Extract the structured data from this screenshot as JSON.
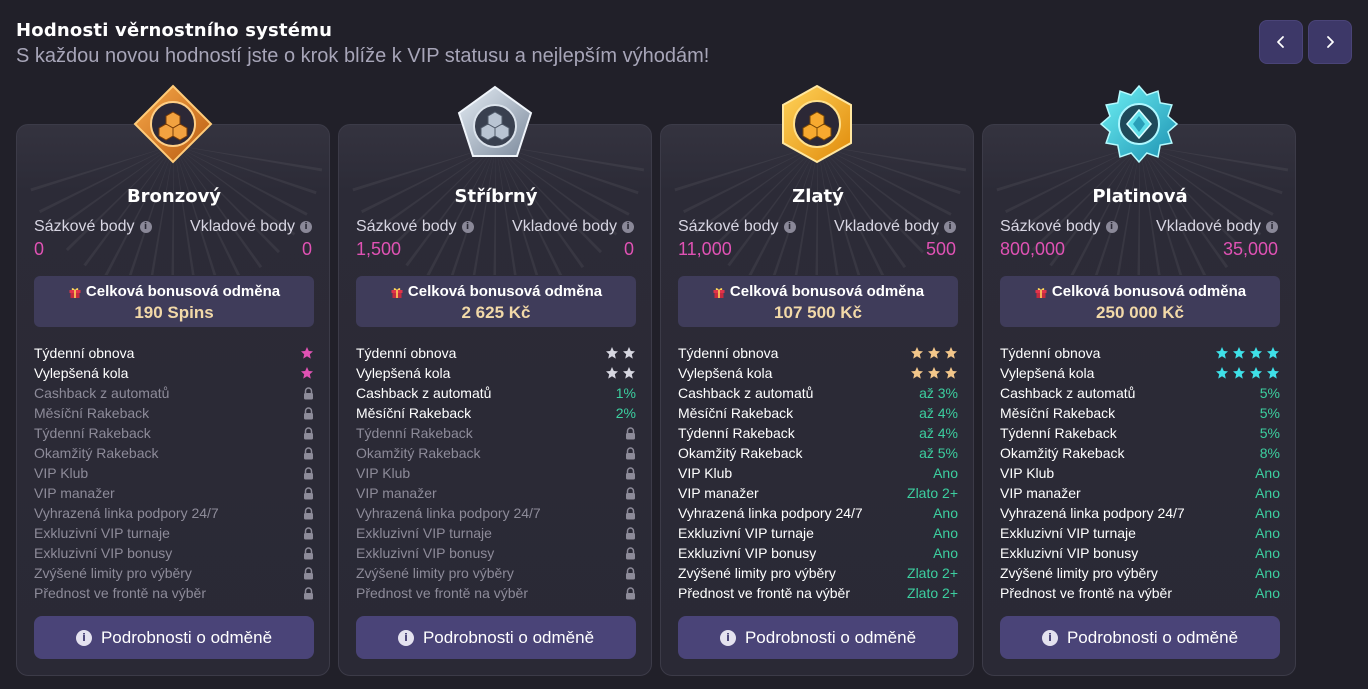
{
  "header": {
    "title": "Hodnosti věrnostního systému",
    "subtitle": "S každou novou hodností jste o krok blíže k VIP statusu a nejlepším výhodám!"
  },
  "nav": {
    "prev_icon": "chevron-left-icon",
    "next_icon": "chevron-right-icon"
  },
  "colors": {
    "accent_pink": "#e052b4",
    "value_green": "#3ccfa0",
    "bonus_gold": "#f2d9a8",
    "button_bg": "#4a4478"
  },
  "labels": {
    "wager_points": "Sázkové body",
    "deposit_points": "Vkladové body",
    "total_bonus": "Celková bonusová odměna",
    "details_button": "Podrobnosti o odměně"
  },
  "feature_names": [
    "Týdenní obnova",
    "Vylepšená kola",
    "Cashback z automatů",
    "Měsíční Rakeback",
    "Týdenní Rakeback",
    "Okamžitý Rakeback",
    "VIP Klub",
    "VIP manažer",
    "Vyhrazená linka podpory 24/7",
    "Exkluzivní VIP turnaje",
    "Exkluzivní VIP bonusy",
    "Zvýšené limity pro výběry",
    "Přednost ve frontě na výběr"
  ],
  "tiers": [
    {
      "name": "Bronzový",
      "badge": "bronze-badge-icon",
      "wager": "0",
      "deposit": "0",
      "bonus": "190 Spins",
      "star_color": "#e052b4",
      "features": [
        {
          "type": "stars",
          "count": 1
        },
        {
          "type": "stars",
          "count": 1
        },
        {
          "type": "locked"
        },
        {
          "type": "locked"
        },
        {
          "type": "locked"
        },
        {
          "type": "locked"
        },
        {
          "type": "locked"
        },
        {
          "type": "locked"
        },
        {
          "type": "locked"
        },
        {
          "type": "locked"
        },
        {
          "type": "locked"
        },
        {
          "type": "locked"
        },
        {
          "type": "locked"
        }
      ]
    },
    {
      "name": "Stříbrný",
      "badge": "silver-badge-icon",
      "wager": "1,500",
      "deposit": "0",
      "bonus": "2 625 Kč",
      "star_color": "#d6d6e0",
      "features": [
        {
          "type": "stars",
          "count": 2
        },
        {
          "type": "stars",
          "count": 2
        },
        {
          "type": "value",
          "value": "1%"
        },
        {
          "type": "value",
          "value": "2%"
        },
        {
          "type": "locked"
        },
        {
          "type": "locked"
        },
        {
          "type": "locked"
        },
        {
          "type": "locked"
        },
        {
          "type": "locked"
        },
        {
          "type": "locked"
        },
        {
          "type": "locked"
        },
        {
          "type": "locked"
        },
        {
          "type": "locked"
        }
      ]
    },
    {
      "name": "Zlatý",
      "badge": "gold-badge-icon",
      "wager": "11,000",
      "deposit": "500",
      "bonus": "107 500 Kč",
      "star_color": "#f2c68a",
      "features": [
        {
          "type": "stars",
          "count": 3
        },
        {
          "type": "stars",
          "count": 3
        },
        {
          "type": "value",
          "value": "až 3%"
        },
        {
          "type": "value",
          "value": "až 4%"
        },
        {
          "type": "value",
          "value": "až 4%"
        },
        {
          "type": "value",
          "value": "až 5%"
        },
        {
          "type": "value",
          "value": "Ano"
        },
        {
          "type": "value",
          "value": "Zlato 2+"
        },
        {
          "type": "value",
          "value": "Ano"
        },
        {
          "type": "value",
          "value": "Ano"
        },
        {
          "type": "value",
          "value": "Ano"
        },
        {
          "type": "value",
          "value": "Zlato 2+"
        },
        {
          "type": "value",
          "value": "Zlato 2+"
        }
      ]
    },
    {
      "name": "Platinová",
      "badge": "platinum-badge-icon",
      "wager": "800,000",
      "deposit": "35,000",
      "bonus": "250 000 Kč",
      "star_color": "#3fe0e8",
      "features": [
        {
          "type": "stars",
          "count": 4
        },
        {
          "type": "stars",
          "count": 4
        },
        {
          "type": "value",
          "value": "5%"
        },
        {
          "type": "value",
          "value": "5%"
        },
        {
          "type": "value",
          "value": "5%"
        },
        {
          "type": "value",
          "value": "8%"
        },
        {
          "type": "value",
          "value": "Ano"
        },
        {
          "type": "value",
          "value": "Ano"
        },
        {
          "type": "value",
          "value": "Ano"
        },
        {
          "type": "value",
          "value": "Ano"
        },
        {
          "type": "value",
          "value": "Ano"
        },
        {
          "type": "value",
          "value": "Ano"
        },
        {
          "type": "value",
          "value": "Ano"
        }
      ]
    }
  ]
}
